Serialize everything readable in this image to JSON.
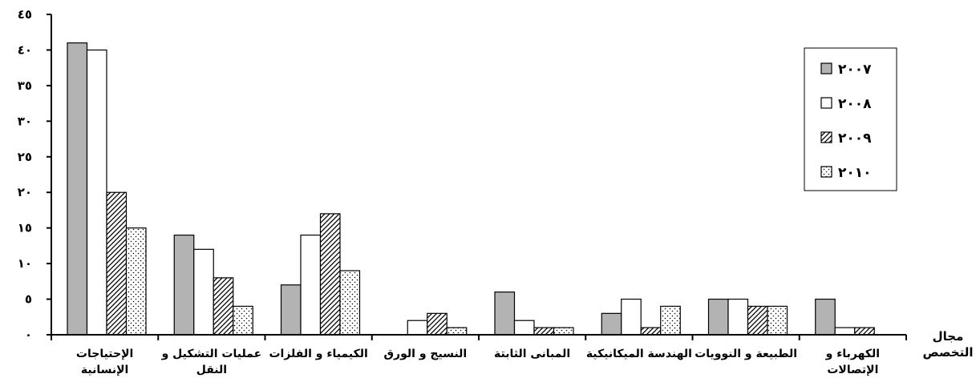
{
  "chart_data": {
    "type": "bar",
    "xlabel": [
      "مجال",
      "التخصص"
    ],
    "ylim": [
      0,
      45
    ],
    "yticks": [
      {
        "value": 0,
        "label": "٠"
      },
      {
        "value": 5,
        "label": "٥"
      },
      {
        "value": 10,
        "label": "١٠"
      },
      {
        "value": 15,
        "label": "١٥"
      },
      {
        "value": 20,
        "label": "٢٠"
      },
      {
        "value": 25,
        "label": "٢٥"
      },
      {
        "value": 30,
        "label": "٣٠"
      },
      {
        "value": 35,
        "label": "٣٥"
      },
      {
        "value": 40,
        "label": "٤٠"
      },
      {
        "value": 45,
        "label": "٤٥"
      }
    ],
    "categories": [
      [
        "الإحتياجات",
        "الإنسانية"
      ],
      [
        "عمليات التشكيل و",
        "النقل"
      ],
      [
        "الكيمياء و الفلزات"
      ],
      [
        "النسيج و الورق"
      ],
      [
        "المبانى الثابتة"
      ],
      [
        "الهندسة الميكانيكية"
      ],
      [
        "الطبيعة و النوويات"
      ],
      [
        "الكهرباء و",
        "الإتصالات"
      ]
    ],
    "series": [
      {
        "name": "٢٠٠٧",
        "pattern": "solid-gray",
        "values": [
          41,
          14,
          7,
          0,
          6,
          3,
          5,
          5
        ]
      },
      {
        "name": "٢٠٠٨",
        "pattern": "white",
        "values": [
          40,
          12,
          14,
          2,
          2,
          5,
          5,
          1
        ]
      },
      {
        "name": "٢٠٠٩",
        "pattern": "diagonal-hatch",
        "values": [
          20,
          8,
          17,
          3,
          1,
          1,
          4,
          1
        ]
      },
      {
        "name": "٢٠١٠",
        "pattern": "dotted",
        "values": [
          15,
          4,
          9,
          1,
          1,
          4,
          4,
          0
        ]
      }
    ],
    "grid": false,
    "legend_position": "top-right",
    "colors": {
      "gray": "#b3b3b3",
      "white": "#ffffff",
      "stroke": "#000000"
    }
  }
}
